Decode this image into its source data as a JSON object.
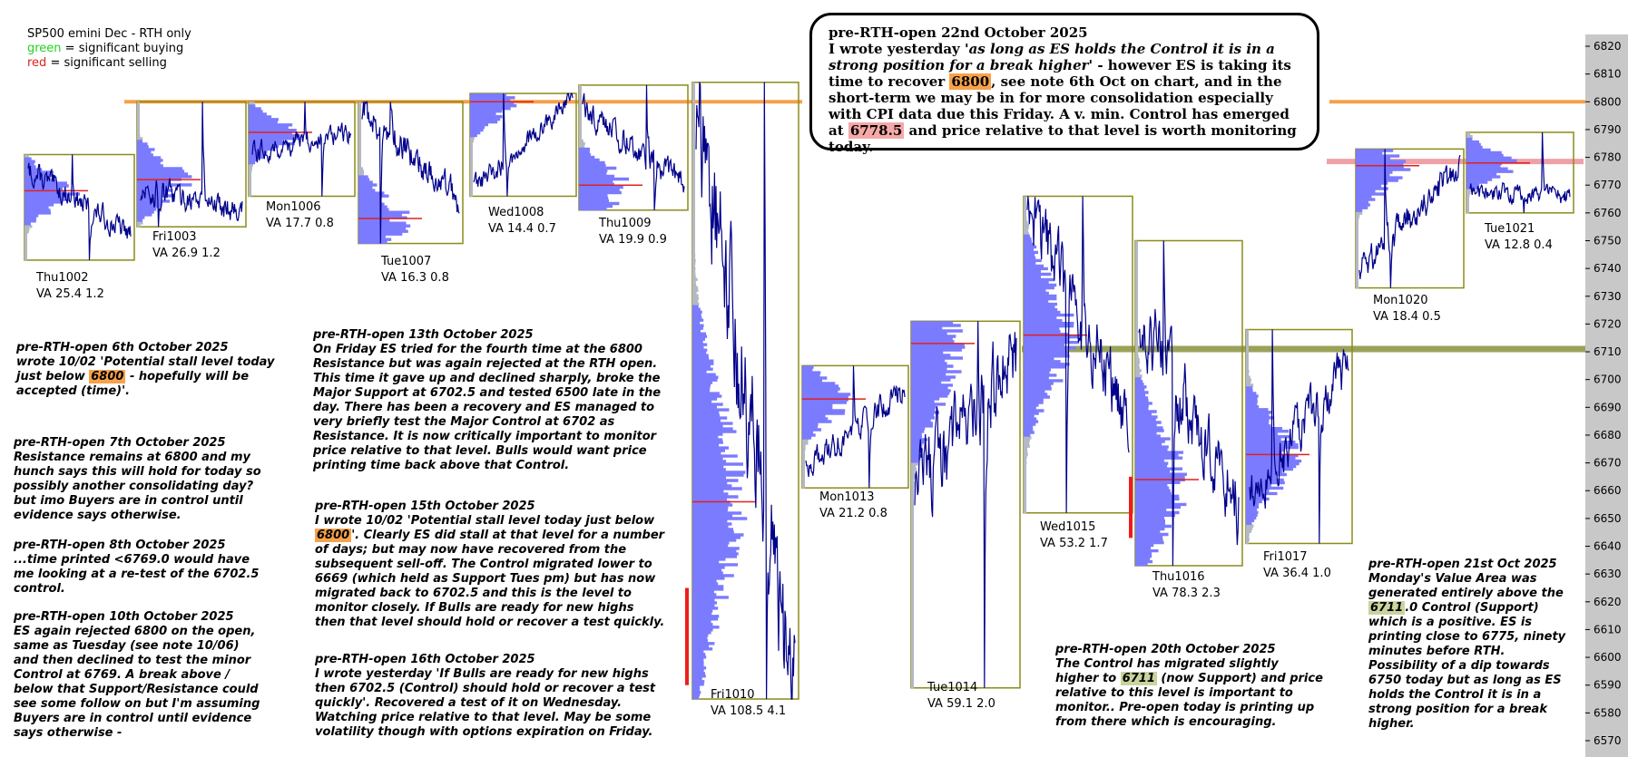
{
  "legend": {
    "line1": "SP500 emini  Dec - RTH only",
    "green_word": "green",
    "green_rest": " = significant buying",
    "red_word": "red",
    "red_rest": " = significant selling"
  },
  "callout": {
    "title": "pre-RTH-open 22nd October 2025",
    "t1": "I wrote yesterday '",
    "t2": "as long as ES holds the Control it is in a strong position for a break higher",
    "t3": "' - however ES is taking its time to recover ",
    "hl1": "6800",
    "t4": ", see note 6th Oct on chart, and in the short-term we may be in for more consolidation especially with CPI data due this Friday. A v. min. Control has emerged at ",
    "hl2": "6778.5",
    "t5": " and price relative to that level is worth monitoring today."
  },
  "notes": {
    "oct6_a": "pre-RTH-open 6th October 2025\nwrote 10/02 'Potential stall level today\njust below ",
    "oct6_hl": "6800",
    "oct6_b": " - hopefully will be\naccepted (time)'.",
    "oct7": "pre-RTH-open 7th October 2025\nResistance remains at 6800 and my\nhunch says this will hold for today so\npossibly another consolidating day?\nbut imo Buyers are in control until\nevidence says otherwise.",
    "oct8": "pre-RTH-open 8th October 2025\n...time printed <6769.0 would have\nme looking at a re-test of the 6702.5\ncontrol.",
    "oct10": "pre-RTH-open 10th October 2025\nES again rejected 6800 on the open,\nsame as Tuesday (see note 10/06)\nand then declined to test the minor\nControl at 6769. A break above /\nbelow that Support/Resistance could\nsee some follow on but I'm assuming\nBuyers are in control until evidence\nsays otherwise -",
    "oct13": "pre-RTH-open 13th October 2025\nOn Friday ES tried for the fourth time at the 6800\nResistance but was again rejected at the RTH open.\nThis time it gave up and declined sharply, broke the\nMajor Support at 6702.5 and tested 6500 late in the\nday. There has been a recovery and ES managed to\nvery briefly test the Major Control at 6702 as\nResistance. It is now critically important to monitor\nprice relative to that level. Bulls would want price\nprinting time back above that Control.",
    "oct15_a": "pre-RTH-open 15th October 2025\nI wrote 10/02 'Potential stall level today just below\n",
    "oct15_hl": "6800",
    "oct15_b": "'. Clearly ES did stall at that level for a number\nof days; but may now have recovered from the\nsubsequent sell-off. The Control migrated lower to\n6669 (which held as Support Tues pm) but has now\nmigrated back to 6702.5 and this is the level to\nmonitor closely. If Bulls are ready for new highs\nthen that level should hold or recover a test quickly.",
    "oct16": "pre-RTH-open 16th October 2025\nI wrote yesterday 'If Bulls are ready for new highs\nthen 6702.5 (Control) should hold or recover a test\nquickly'. Recovered a test of it on Wednesday.\nWatching price relative to that level. May be some\nvolatility though with options expiration on Friday.",
    "oct20_a": "pre-RTH-open 20th October 2025\nThe Control has migrated slightly\nhigher to ",
    "oct20_hl": "6711",
    "oct20_b": " (now Support) and price\nrelative to this level is important to\nmonitor.. Pre-open today is printing up\nfrom there which is encouraging.",
    "oct21_a": "pre-RTH-open 21st Oct 2025\nMonday's Value Area was\ngenerated entirely above the\n",
    "oct21_hl": "6711",
    "oct21_b": ".0 Control (Support)\nwhich is a positive. ES is\nprinting close to 6775, ninety\nminutes before RTH.\nPossibility of a dip towards\n6750 today but as long as ES\nholds the Control it is in a\nstrong position for a break\nhigher."
  },
  "colors": {
    "price": "#00008b",
    "box": "#8b8b1a",
    "profile_va": "#7b7bff",
    "profile_out": "#b4b8c4",
    "poc": "#e02020",
    "level_6800": "#f5a04a",
    "level_6711": "#9aa25a",
    "level_6778": "#f0a0a8",
    "axis_bg": "#c8c8c8",
    "selling": "#ee1c1c"
  },
  "chart_data": {
    "type": "line",
    "title": "SP500 emini  Dec - RTH only",
    "ylim": [
      6563,
      6828
    ],
    "yticks": [
      "6820",
      "6810",
      "6800",
      "6790",
      "6780",
      "6770",
      "6760",
      "6750",
      "6740",
      "6730",
      "6720",
      "6710",
      "6700",
      "6690",
      "6680",
      "6670",
      "6660",
      "6650",
      "6640",
      "6630",
      "6620",
      "6610",
      "6600",
      "6590",
      "6580",
      "6570"
    ],
    "levels": [
      {
        "value": 6800,
        "color": "orange"
      },
      {
        "value": 6711,
        "color": "olive"
      },
      {
        "value": 6778.5,
        "color": "pink"
      }
    ],
    "sessions": [
      {
        "label": "Thu1002",
        "va": "VA 25.4  1.2",
        "high": 6781,
        "low": 6743,
        "open": 6775,
        "close": 6752,
        "poc": 6768
      },
      {
        "label": "Fri1003",
        "va": "VA 26.9  1.2",
        "high": 6800,
        "low": 6755,
        "open": 6768,
        "close": 6762,
        "poc": 6772
      },
      {
        "label": "Mon1006",
        "va": "VA 17.7  0.8",
        "high": 6800,
        "low": 6766,
        "open": 6782,
        "close": 6789,
        "poc": 6789
      },
      {
        "label": "Tue1007",
        "va": "VA 16.3  0.8",
        "high": 6800,
        "low": 6749,
        "open": 6798,
        "close": 6764,
        "poc": 6758
      },
      {
        "label": "Wed1008",
        "va": "VA 14.4  0.7",
        "high": 6803,
        "low": 6766,
        "open": 6768,
        "close": 6801,
        "poc": 6800
      },
      {
        "label": "Thu1009",
        "va": "VA 19.9  0.9",
        "high": 6806,
        "low": 6761,
        "open": 6798,
        "close": 6770,
        "poc": 6770
      },
      {
        "label": "Fri1010",
        "va": "VA 108.5  4.1",
        "high": 6807,
        "low": 6585,
        "open": 6795,
        "close": 6588,
        "poc": 6656
      },
      {
        "label": "Mon1013",
        "va": "VA 21.2  0.8",
        "high": 6705,
        "low": 6661,
        "open": 6668,
        "close": 6697,
        "poc": 6693
      },
      {
        "label": "Tue1014",
        "va": "VA 59.1  2.0",
        "high": 6721,
        "low": 6589,
        "open": 6660,
        "close": 6708,
        "poc": 6713
      },
      {
        "label": "Wed1015",
        "va": "VA 53.2  1.7",
        "high": 6766,
        "low": 6652,
        "open": 6762,
        "close": 6684,
        "poc": 6716
      },
      {
        "label": "Thu1016",
        "va": "VA 78.3  2.3",
        "high": 6750,
        "low": 6633,
        "open": 6724,
        "close": 6653,
        "poc": 6664
      },
      {
        "label": "Fri1017",
        "va": "VA 36.4  1.0",
        "high": 6718,
        "low": 6641,
        "open": 6657,
        "close": 6706,
        "poc": 6673
      },
      {
        "label": "Mon1020",
        "va": "VA 18.4  0.5",
        "high": 6783,
        "low": 6733,
        "open": 6740,
        "close": 6776,
        "poc": 6777
      },
      {
        "label": "Tue1021",
        "va": "VA 12.8  0.4",
        "high": 6789,
        "low": 6760,
        "open": 6768,
        "close": 6766,
        "poc": 6778
      }
    ]
  }
}
